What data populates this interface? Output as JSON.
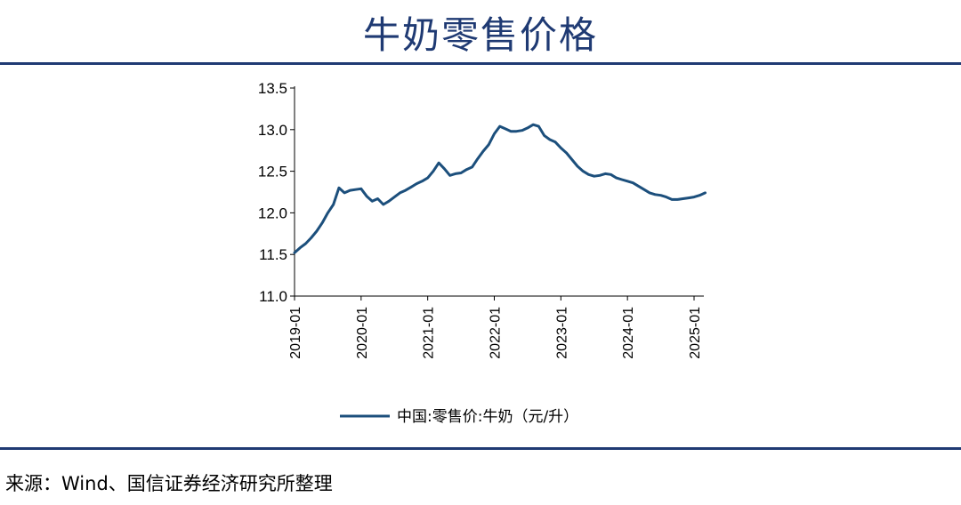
{
  "header": {
    "title": "牛奶零售价格"
  },
  "footer": {
    "source": "来源：Wind、国信证券经济研究所整理"
  },
  "chart_data": {
    "type": "line",
    "title": "牛奶零售价格",
    "xlabel": "",
    "ylabel": "",
    "ylim": [
      11.0,
      13.5
    ],
    "yticks": [
      "11.0",
      "11.5",
      "12.0",
      "12.5",
      "13.0",
      "13.5"
    ],
    "xticks": [
      "2019-01",
      "2020-01",
      "2021-01",
      "2022-01",
      "2023-01",
      "2024-01",
      "2025-01"
    ],
    "grid": false,
    "legend": "bottom",
    "series": [
      {
        "name": "中国:零售价:牛奶（元/升）",
        "color": "#1c4f7c",
        "points": [
          [
            "2019-01",
            11.52
          ],
          [
            "2019-02",
            11.58
          ],
          [
            "2019-03",
            11.63
          ],
          [
            "2019-04",
            11.7
          ],
          [
            "2019-05",
            11.78
          ],
          [
            "2019-06",
            11.88
          ],
          [
            "2019-07",
            12.0
          ],
          [
            "2019-08",
            12.1
          ],
          [
            "2019-09",
            12.3
          ],
          [
            "2019-10",
            12.24
          ],
          [
            "2019-11",
            12.27
          ],
          [
            "2019-12",
            12.28
          ],
          [
            "2020-01",
            12.29
          ],
          [
            "2020-02",
            12.2
          ],
          [
            "2020-03",
            12.14
          ],
          [
            "2020-04",
            12.17
          ],
          [
            "2020-05",
            12.1
          ],
          [
            "2020-06",
            12.14
          ],
          [
            "2020-07",
            12.19
          ],
          [
            "2020-08",
            12.24
          ],
          [
            "2020-09",
            12.27
          ],
          [
            "2020-10",
            12.31
          ],
          [
            "2020-11",
            12.35
          ],
          [
            "2020-12",
            12.38
          ],
          [
            "2021-01",
            12.42
          ],
          [
            "2021-02",
            12.5
          ],
          [
            "2021-03",
            12.6
          ],
          [
            "2021-04",
            12.53
          ],
          [
            "2021-05",
            12.45
          ],
          [
            "2021-06",
            12.47
          ],
          [
            "2021-07",
            12.48
          ],
          [
            "2021-08",
            12.52
          ],
          [
            "2021-09",
            12.55
          ],
          [
            "2021-10",
            12.65
          ],
          [
            "2021-11",
            12.74
          ],
          [
            "2021-12",
            12.82
          ],
          [
            "2022-01",
            12.95
          ],
          [
            "2022-02",
            13.04
          ],
          [
            "2022-03",
            13.01
          ],
          [
            "2022-04",
            12.98
          ],
          [
            "2022-05",
            12.98
          ],
          [
            "2022-06",
            12.99
          ],
          [
            "2022-07",
            13.02
          ],
          [
            "2022-08",
            13.06
          ],
          [
            "2022-09",
            13.04
          ],
          [
            "2022-10",
            12.93
          ],
          [
            "2022-11",
            12.88
          ],
          [
            "2022-12",
            12.85
          ],
          [
            "2023-01",
            12.78
          ],
          [
            "2023-02",
            12.72
          ],
          [
            "2023-03",
            12.64
          ],
          [
            "2023-04",
            12.56
          ],
          [
            "2023-05",
            12.5
          ],
          [
            "2023-06",
            12.46
          ],
          [
            "2023-07",
            12.44
          ],
          [
            "2023-08",
            12.45
          ],
          [
            "2023-09",
            12.47
          ],
          [
            "2023-10",
            12.46
          ],
          [
            "2023-11",
            12.42
          ],
          [
            "2023-12",
            12.4
          ],
          [
            "2024-01",
            12.38
          ],
          [
            "2024-02",
            12.36
          ],
          [
            "2024-03",
            12.32
          ],
          [
            "2024-04",
            12.28
          ],
          [
            "2024-05",
            12.24
          ],
          [
            "2024-06",
            12.22
          ],
          [
            "2024-07",
            12.21
          ],
          [
            "2024-08",
            12.19
          ],
          [
            "2024-09",
            12.16
          ],
          [
            "2024-10",
            12.16
          ],
          [
            "2024-11",
            12.17
          ],
          [
            "2024-12",
            12.18
          ],
          [
            "2025-01",
            12.19
          ],
          [
            "2025-02",
            12.21
          ],
          [
            "2025-03",
            12.24
          ]
        ]
      }
    ]
  }
}
